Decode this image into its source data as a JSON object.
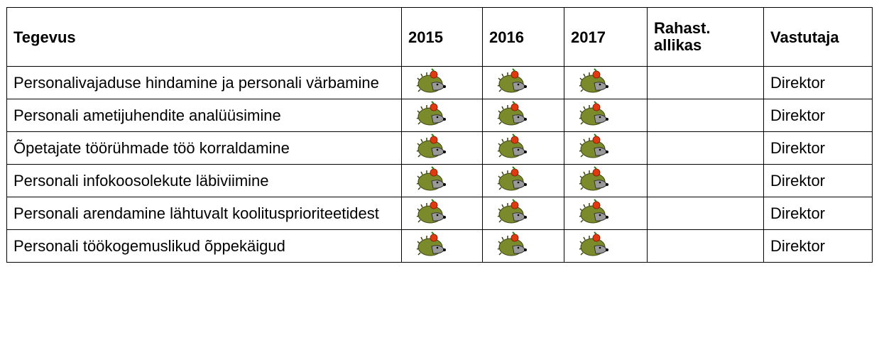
{
  "table": {
    "header": [
      "Tegevus",
      "2015",
      "2016",
      "2017",
      "Rahast. allikas",
      "Vastutaja"
    ],
    "rows": [
      {
        "activity": "Personalivajaduse hindamine ja personali värbamine",
        "responsible": "Direktor"
      },
      {
        "activity": "Personali ametijuhendite analüüsimine",
        "responsible": "Direktor"
      },
      {
        "activity": "Õpetajate töörühmade töö korraldamine",
        "responsible": "Direktor"
      },
      {
        "activity": "Personali infokoosolekute läbiviimine",
        "responsible": "Direktor"
      },
      {
        "activity": "Personali arendamine lähtuvalt koolitusprioriteetidest",
        "responsible": "Direktor"
      },
      {
        "activity": "Personali töökogemuslikud õppekäigud",
        "responsible": "Direktor"
      }
    ]
  }
}
